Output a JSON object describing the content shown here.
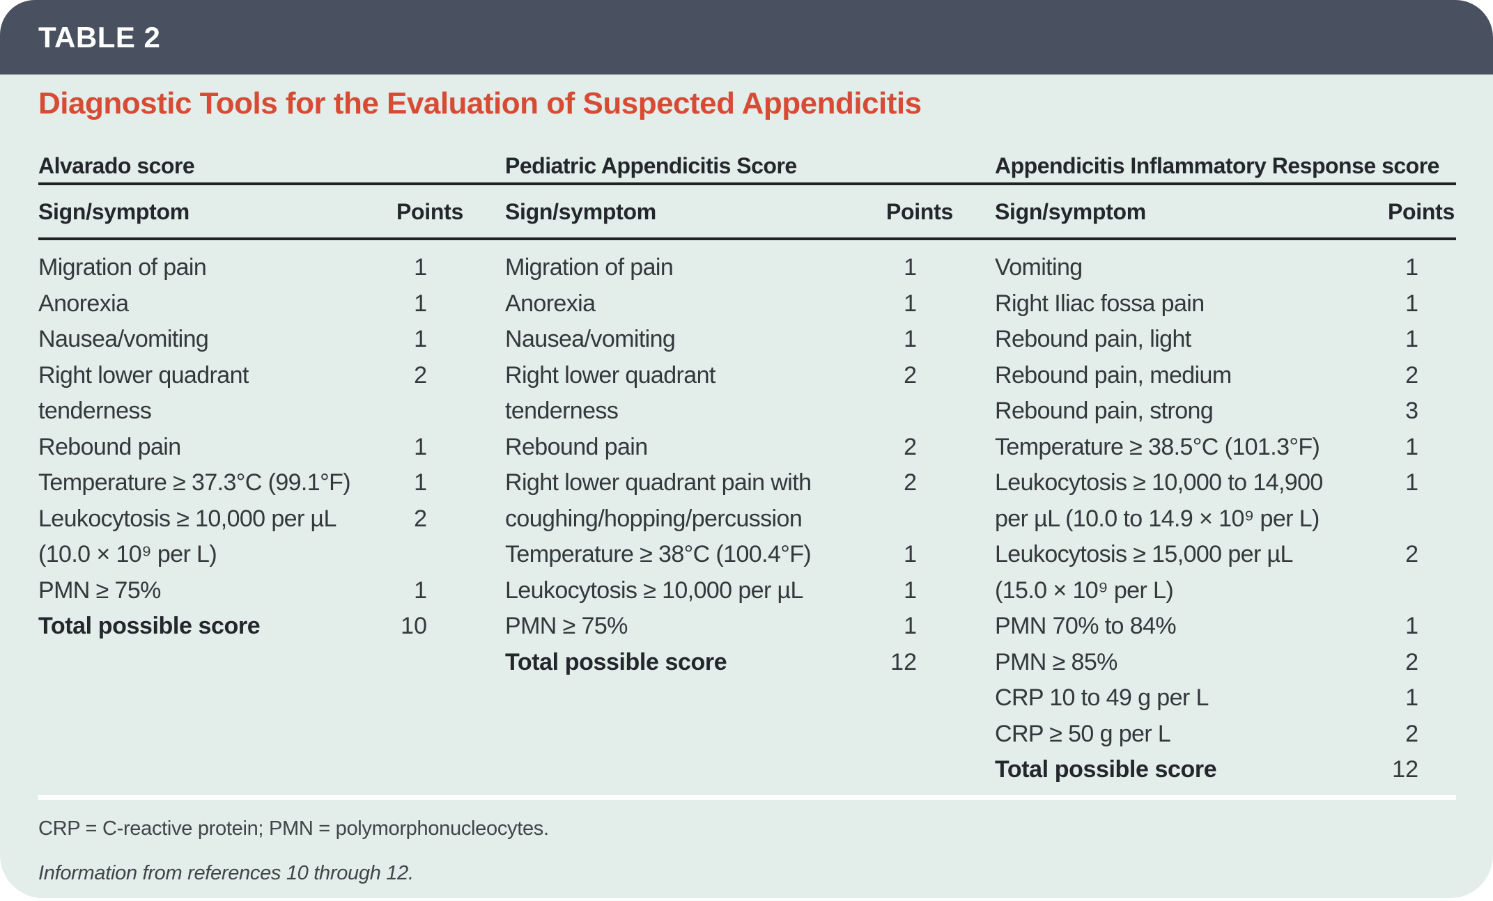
{
  "table_label": "TABLE 2",
  "title": "Diagnostic Tools for the Evaluation of Suspected Appendicitis",
  "colors": {
    "header_bar": "#49505F",
    "panel_bg": "#E3EDE9",
    "title_red": "#D74B35",
    "rule_dark": "#1F2326",
    "body_text": "#33383B",
    "head_text": "#23272B",
    "footnote_text": "#3E4648"
  },
  "columns": [
    {
      "name": "Alvarado score",
      "sign_header": "Sign/symptom",
      "points_header": "Points",
      "rows": [
        {
          "label": "Migration of pain",
          "points": "1"
        },
        {
          "label": "Anorexia",
          "points": "1"
        },
        {
          "label": "Nausea/vomiting",
          "points": "1"
        },
        {
          "label": "Right lower quadrant\ntenderness",
          "points": "2"
        },
        {
          "label": "Rebound pain",
          "points": "1"
        },
        {
          "label": "Temperature ≥ 37.3°C (99.1°F)",
          "points": "1"
        },
        {
          "label": "Leukocytosis ≥ 10,000 per µL\n(10.0 × 10⁹ per L)",
          "points": "2"
        },
        {
          "label": "PMN ≥ 75%",
          "points": "1"
        },
        {
          "label": "Total possible score",
          "points": "10",
          "bold": true
        }
      ]
    },
    {
      "name": "Pediatric Appendicitis Score",
      "sign_header": "Sign/symptom",
      "points_header": "Points",
      "rows": [
        {
          "label": "Migration of pain",
          "points": "1"
        },
        {
          "label": "Anorexia",
          "points": "1"
        },
        {
          "label": "Nausea/vomiting",
          "points": "1"
        },
        {
          "label": "Right lower quadrant\ntenderness",
          "points": "2"
        },
        {
          "label": "Rebound pain",
          "points": "2"
        },
        {
          "label": "Right lower quadrant pain with\ncoughing/hopping/percussion",
          "points": "2"
        },
        {
          "label": "Temperature ≥ 38°C (100.4°F)",
          "points": "1"
        },
        {
          "label": "Leukocytosis ≥ 10,000 per µL",
          "points": "1"
        },
        {
          "label": "PMN ≥ 75%",
          "points": "1"
        },
        {
          "label": "Total possible score",
          "points": "12",
          "bold": true
        }
      ]
    },
    {
      "name": "Appendicitis Inflammatory Response score",
      "sign_header": "Sign/symptom",
      "points_header": "Points",
      "rows": [
        {
          "label": "Vomiting",
          "points": "1"
        },
        {
          "label": "Right Iliac fossa pain",
          "points": "1"
        },
        {
          "label": "Rebound pain, light",
          "points": "1"
        },
        {
          "label": "Rebound pain, medium",
          "points": "2"
        },
        {
          "label": "Rebound pain, strong",
          "points": "3"
        },
        {
          "label": "Temperature ≥ 38.5°C (101.3°F)",
          "points": "1"
        },
        {
          "label": "Leukocytosis ≥ 10,000 to 14,900\nper µL (10.0 to 14.9 × 10⁹ per L)",
          "points": "1"
        },
        {
          "label": "Leukocytosis ≥ 15,000 per µL\n(15.0 × 10⁹ per L)",
          "points": "2"
        },
        {
          "label": "PMN 70% to 84%",
          "points": "1"
        },
        {
          "label": "PMN ≥ 85%",
          "points": "2"
        },
        {
          "label": "CRP 10 to 49 g per L",
          "points": "1"
        },
        {
          "label": "CRP ≥ 50 g per L",
          "points": "2"
        },
        {
          "label": "Total possible score",
          "points": "12",
          "bold": true
        }
      ]
    }
  ],
  "footnotes": {
    "abbreviations": "CRP = C-reactive protein; PMN = polymorphonucleocytes.",
    "source": "Information from references 10 through 12."
  }
}
